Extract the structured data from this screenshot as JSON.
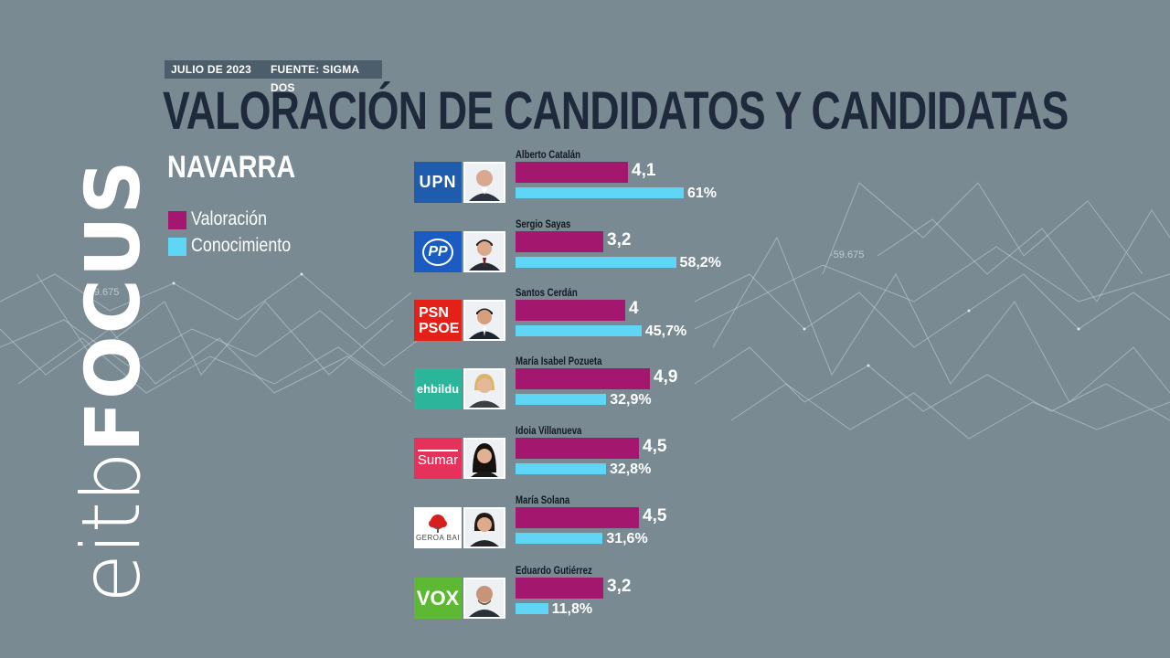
{
  "header": {
    "date": "JULIO DE 2023",
    "source": "FUENTE: SIGMA DOS",
    "title": "VALORACIÓN DE CANDIDATOS Y CANDIDATAS",
    "region": "NAVARRA"
  },
  "brand": {
    "part1": "eitb",
    "part2": "FOCUS"
  },
  "background_numbers": [
    "-59.675",
    "-59.675"
  ],
  "colors": {
    "background": "#798a93",
    "valoracion": "#a3186e",
    "conocimiento": "#5fd6f5",
    "title": "#1e2a3c"
  },
  "chart_data": {
    "type": "bar",
    "orientation": "horizontal",
    "title": "VALORACIÓN DE CANDIDATOS Y CANDIDATAS",
    "subtitle": "NAVARRA",
    "legend_position": "left",
    "categories": [
      "Alberto Catalán",
      "Sergio Sayas",
      "Santos Cerdán",
      "María Isabel Pozueta",
      "Idoia Villanueva",
      "María Solana",
      "Eduardo Gutiérrez"
    ],
    "parties": [
      "UPN",
      "PP",
      "PSN PSOE",
      "ehbildu",
      "Sumar",
      "GEROA BAI",
      "VOX"
    ],
    "series": [
      {
        "name": "Valoración",
        "values": [
          4.1,
          3.2,
          4,
          4.9,
          4.5,
          4.5,
          3.2
        ],
        "labels": [
          "4,1",
          "3,2",
          "4",
          "4,9",
          "4,5",
          "4,5",
          "3,2"
        ],
        "color": "#a3186e"
      },
      {
        "name": "Conocimiento",
        "values": [
          61,
          58.2,
          45.7,
          32.9,
          32.8,
          31.6,
          11.8
        ],
        "labels": [
          "61%",
          "58,2%",
          "45,7%",
          "32,9%",
          "32,8%",
          "31,6%",
          "11,8%"
        ],
        "unit": "%",
        "color": "#5fd6f5"
      }
    ]
  }
}
